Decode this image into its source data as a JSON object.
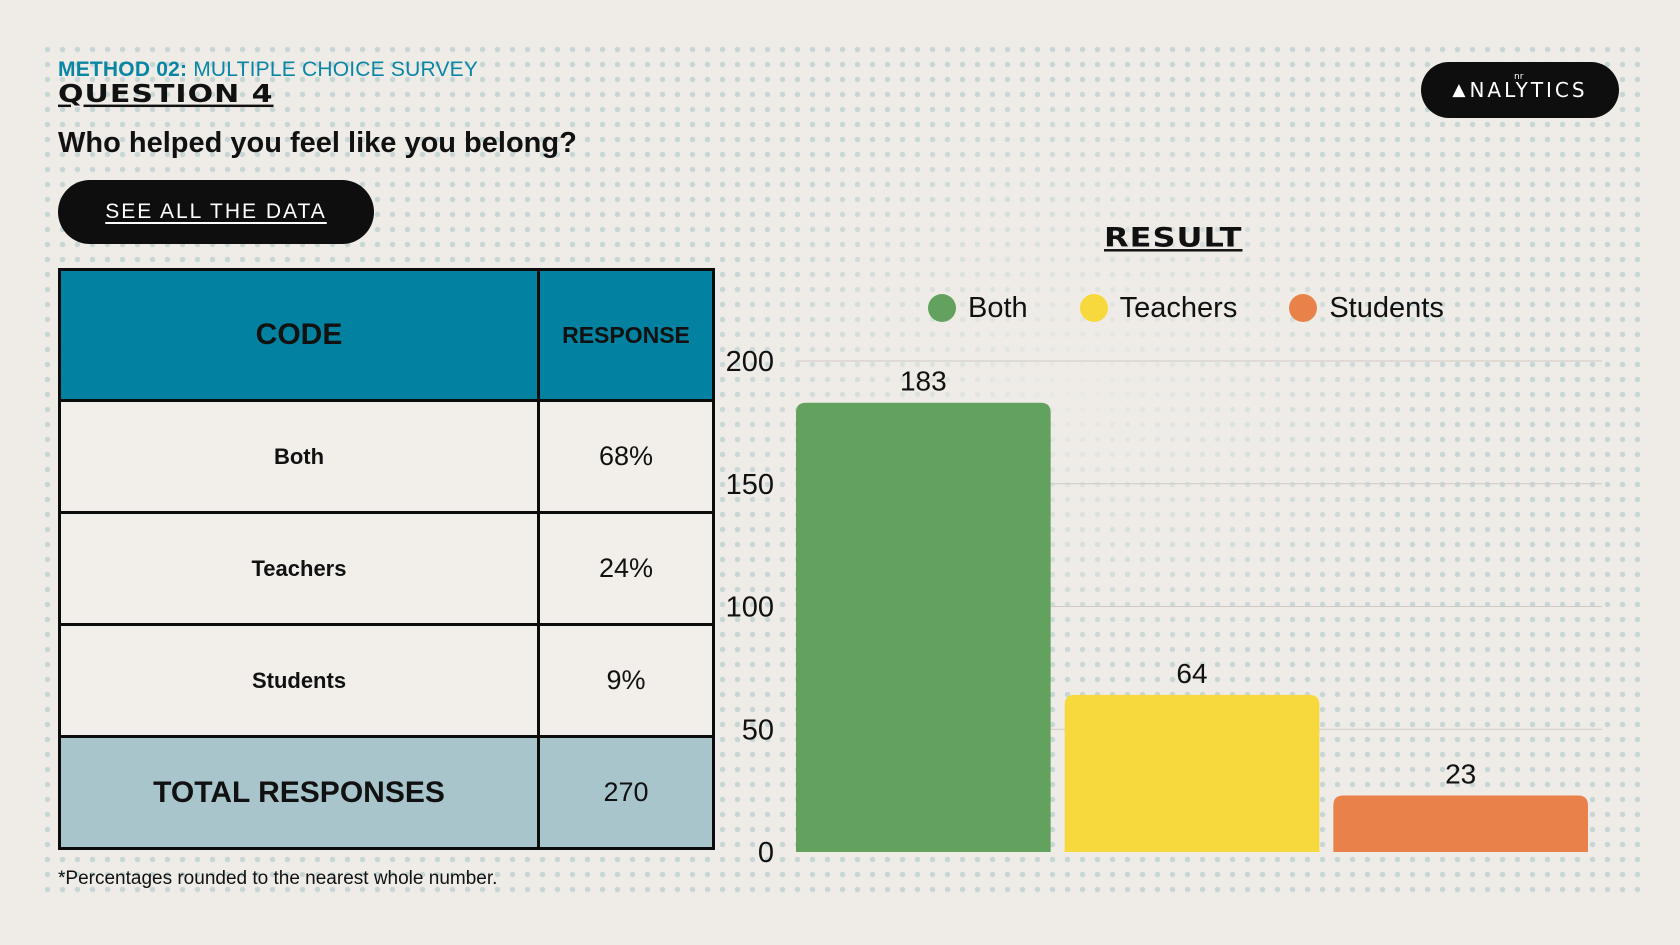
{
  "header": {
    "method_bold": "METHOD 02:",
    "method_rest": " MULTIPLE CHOICE SURVEY",
    "question": "QUESTION 4",
    "prompt": "Who helped you feel like you belong?",
    "see_all_label": "SEE ALL THE DATA",
    "logo_text": "NALYTICS",
    "logo_mark": "nr"
  },
  "table": {
    "headers": [
      "CODE",
      "RESPONSE"
    ],
    "rows": [
      {
        "code": "Both",
        "response": "68%"
      },
      {
        "code": "Teachers",
        "response": "24%"
      },
      {
        "code": "Students",
        "response": "9%"
      }
    ],
    "total": {
      "label": "TOTAL RESPONSES",
      "value": "270"
    }
  },
  "footnote": "*Percentages rounded to the nearest whole number.",
  "colors": {
    "both": "#63a15e",
    "teachers": "#f7d93e",
    "students": "#e8824a",
    "header": "#0281a0",
    "total": "#a8c5cc"
  },
  "chart_data": {
    "type": "bar",
    "title": "RESULT",
    "categories": [
      "Both",
      "Teachers",
      "Students"
    ],
    "values": [
      183,
      64,
      23
    ],
    "colors": [
      "#63a15e",
      "#f7d93e",
      "#e8824a"
    ],
    "ylim": [
      0,
      200
    ],
    "yticks": [
      0,
      50,
      100,
      150,
      200
    ],
    "legend": [
      "Both",
      "Teachers",
      "Students"
    ],
    "legend_position": "top",
    "grid": true
  }
}
